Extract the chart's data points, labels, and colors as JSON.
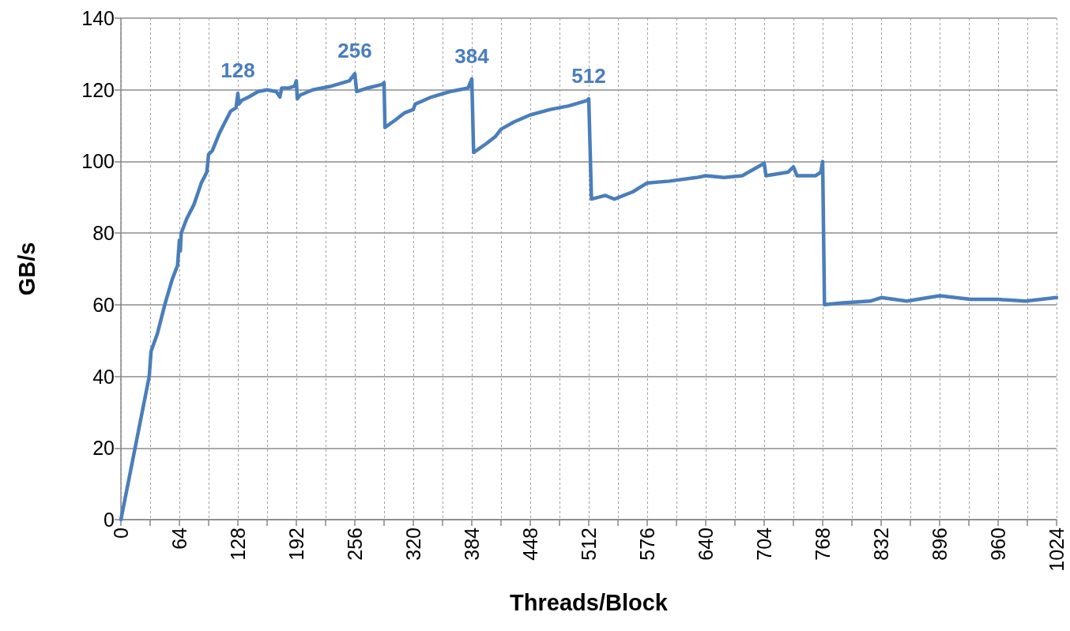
{
  "chart_data": {
    "type": "line",
    "xlabel": "Threads/Block",
    "ylabel": "GB/s",
    "xlim": [
      0,
      1024
    ],
    "xticks": [
      0,
      {
        "value": 32,
        "label": null
      },
      64,
      {
        "value": 96,
        "label": null
      },
      128,
      {
        "value": 160,
        "label": null
      },
      192,
      {
        "value": 224,
        "label": null
      },
      256,
      {
        "value": 288,
        "label": null
      },
      320,
      {
        "value": 352,
        "label": null
      },
      384,
      {
        "value": 416,
        "label": null
      },
      448,
      {
        "value": 480,
        "label": null
      },
      512,
      {
        "value": 544,
        "label": null
      },
      576,
      {
        "value": 608,
        "label": null
      },
      640,
      {
        "value": 672,
        "label": null
      },
      704,
      {
        "value": 736,
        "label": null
      },
      768,
      {
        "value": 800,
        "label": null
      },
      832,
      {
        "value": 864,
        "label": null
      },
      896,
      {
        "value": 928,
        "label": null
      },
      960,
      {
        "value": 992,
        "label": null
      },
      1024
    ],
    "ylim": [
      0,
      140
    ],
    "yticks": [
      0,
      20,
      40,
      60,
      80,
      100,
      120,
      140
    ],
    "grid": true,
    "marker": "none",
    "line_style": "solid",
    "series": [
      {
        "color": "#4a7ebb",
        "x": [
          0,
          31,
          33,
          40,
          48,
          56,
          62,
          64,
          65,
          66,
          72,
          80,
          88,
          94,
          96,
          100,
          108,
          112,
          120,
          126,
          128,
          129,
          132,
          140,
          150,
          160,
          170,
          174,
          176,
          184,
          190,
          192,
          193,
          196,
          210,
          230,
          250,
          256,
          258,
          270,
          286,
          288,
          289,
          300,
          310,
          320,
          322,
          340,
          360,
          380,
          384,
          386,
          400,
          410,
          416,
          430,
          448,
          470,
          490,
          510,
          512,
          515,
          530,
          540,
          560,
          576,
          600,
          630,
          640,
          660,
          680,
          704,
          706,
          730,
          736,
          740,
          760,
          766,
          768,
          770,
          790,
          820,
          832,
          860,
          896,
          930,
          960,
          990,
          1024
        ],
        "values": [
          0,
          40,
          47,
          52,
          60,
          67,
          71,
          78,
          75,
          80,
          84,
          88,
          94,
          97,
          102,
          103,
          108,
          110,
          114,
          115,
          119,
          116,
          117,
          118,
          119.5,
          120,
          119.5,
          118,
          120.5,
          120.5,
          121,
          122.5,
          117.5,
          118.5,
          120,
          121,
          122.5,
          124.5,
          119.5,
          120.5,
          121.5,
          122,
          109.5,
          111.5,
          113.5,
          114.5,
          116,
          118,
          119.5,
          120.5,
          123,
          102.5,
          105,
          107,
          109,
          111,
          113,
          114.5,
          115.5,
          117,
          117.5,
          89.5,
          90.5,
          89.5,
          91.5,
          94,
          94.5,
          95.5,
          96,
          95.5,
          96,
          99.5,
          96,
          97,
          98.5,
          96,
          96,
          97,
          100,
          60,
          60.5,
          61,
          62,
          61,
          62.5,
          61.5,
          61.5,
          61,
          62
        ]
      }
    ],
    "annotations": [
      {
        "text": "128",
        "x": 128,
        "y": 119
      },
      {
        "text": "256",
        "x": 256,
        "y": 124.5
      },
      {
        "text": "384",
        "x": 384,
        "y": 123
      },
      {
        "text": "512",
        "x": 512,
        "y": 117.5
      }
    ]
  }
}
